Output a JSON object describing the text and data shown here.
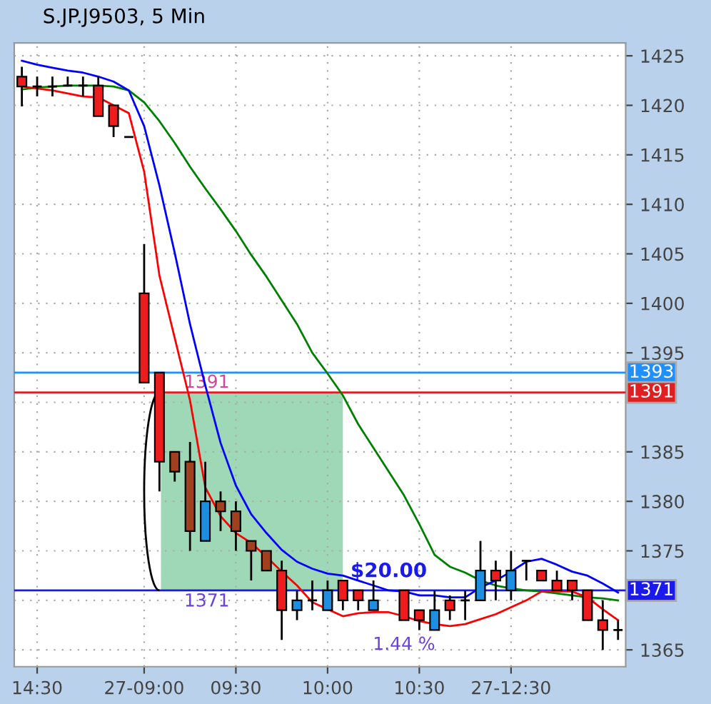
{
  "chart_data": {
    "type": "candlestick",
    "title": "S.JP.J9503, 5 Min",
    "categories": [
      null,
      "14:30",
      null,
      null,
      null,
      null,
      null,
      null,
      "27-09:00",
      null,
      null,
      null,
      null,
      null,
      "09:30",
      null,
      null,
      null,
      null,
      null,
      "10:00",
      null,
      null,
      null,
      null,
      null,
      "10:30",
      null,
      null,
      null,
      null,
      null,
      "27-12:30",
      null,
      null,
      null,
      null,
      null,
      null,
      null
    ],
    "ohlc": [
      [
        1422.9,
        1423.9,
        1419.9,
        1421.9
      ],
      [
        1421.9,
        1422.9,
        1420.9,
        1421.9
      ],
      [
        1421.9,
        1422.9,
        1420.9,
        1421.9
      ],
      [
        1422,
        1422.9,
        1421.9,
        1422
      ],
      [
        1422,
        1422.9,
        1420.9,
        1422
      ],
      [
        1422,
        1422.9,
        1418.9,
        1418.9
      ],
      [
        1420,
        1420,
        1416.8,
        1417.9
      ],
      [
        1416.8,
        1416.8,
        1416.8,
        1416.8
      ],
      [
        1401,
        1406,
        1392,
        1392
      ],
      [
        1393,
        1393,
        1381,
        1384
      ],
      [
        1385,
        1385,
        1382,
        1383
      ],
      [
        1384,
        1386,
        1375,
        1377
      ],
      [
        1376,
        1384,
        1376,
        1380
      ],
      [
        1380,
        1381,
        1377,
        1379
      ],
      [
        1379,
        1380,
        1375,
        1377
      ],
      [
        1376,
        1376,
        1372,
        1375
      ],
      [
        1375,
        1375,
        1373,
        1373
      ],
      [
        1373,
        1374,
        1366,
        1369
      ],
      [
        1369,
        1371,
        1368,
        1370
      ],
      [
        1370,
        1372,
        1369,
        1370
      ],
      [
        1369,
        1372,
        1369,
        1371
      ],
      [
        1372,
        1372,
        1369,
        1370
      ],
      [
        1371,
        1371,
        1369,
        1370
      ],
      [
        1369,
        1372,
        1369,
        1370
      ],
      null,
      [
        1371,
        1371,
        1368,
        1368
      ],
      [
        1369,
        1369,
        1367,
        1368
      ],
      [
        1367,
        1371,
        1367,
        1369
      ],
      [
        1370,
        1370.5,
        1368,
        1369
      ],
      [
        1370,
        1371,
        1368,
        1370
      ],
      [
        1370,
        1376,
        1370,
        1373
      ],
      [
        1373,
        1374,
        1370,
        1372
      ],
      [
        1371,
        1375,
        1370,
        1373
      ],
      [
        1374,
        1374,
        1372,
        1374
      ],
      [
        1373,
        1373,
        1372,
        1372
      ],
      [
        1372,
        1373,
        1371,
        1371
      ],
      [
        1372,
        1372,
        1370,
        1371
      ],
      [
        1371,
        1371,
        1368,
        1368
      ],
      [
        1368,
        1370,
        1365,
        1367
      ],
      [
        1367,
        1368,
        1366,
        1367
      ]
    ],
    "colors": [
      "#ee1c1c",
      "#000000",
      "#000000",
      "#000000",
      "#000000",
      "#ee1c1c",
      "#ee1c1c",
      "#000000",
      "#ee1c1c",
      "#ee1c1c",
      "#a0401e",
      "#a0401e",
      "#1e8fe0",
      "#a0401e",
      "#a0401e",
      "#a0401e",
      "#a0401e",
      "#ee1c1c",
      "#1e8fe0",
      "#000000",
      "#1e8fe0",
      "#ee1c1c",
      "#ee1c1c",
      "#1e8fe0",
      null,
      "#ee1c1c",
      "#ee1c1c",
      "#1e8fe0",
      "#ee1c1c",
      "#000000",
      "#1e8fe0",
      "#ee1c1c",
      "#1e8fe0",
      "#000000",
      "#ee1c1c",
      "#ee1c1c",
      "#ee1c1c",
      "#ee1c1c",
      "#ee1c1c",
      "#000000"
    ],
    "series": [
      {
        "type": "line",
        "color": "#008000",
        "values": [
          1421.6,
          1421.8,
          1421.9,
          1422,
          1422,
          1422,
          1421.9,
          1421.5,
          1420.3,
          1418.4,
          1416.2,
          1413.8,
          1411.6,
          1409.5,
          1407.3,
          1404.9,
          1402.7,
          1400.3,
          1397.9,
          1395.0,
          1392.9,
          1390.7,
          1387.8,
          1385.4,
          1383.0,
          1380.6,
          1377.7,
          1374.6,
          1373.4,
          1372.8,
          1372.0,
          1371.5,
          1371.2,
          1371.0,
          1370.9,
          1370.7,
          1370.5,
          1370.3,
          1370.2,
          1370.0
        ]
      },
      {
        "type": "line",
        "color": "#0000ff",
        "values": [
          1424.5,
          1424.1,
          1423.8,
          1423.5,
          1423.3,
          1422.9,
          1422.4,
          1421.5,
          1417.9,
          1411.9,
          1405.1,
          1397.9,
          1391.7,
          1385.9,
          1381.6,
          1378.7,
          1376.8,
          1375.1,
          1373.9,
          1373.2,
          1372.7,
          1372.5,
          1372.0,
          1371.5,
          1371.0,
          1370.9,
          1370.5,
          1370.5,
          1370.3,
          1370.3,
          1371.3,
          1372.0,
          1372.9,
          1373.9,
          1374.2,
          1373.6,
          1372.9,
          1372.5,
          1371.7,
          1370.8
        ]
      },
      {
        "type": "line",
        "color": "#ff0000",
        "values": [
          1421.9,
          1421.7,
          1421.5,
          1421.2,
          1420.9,
          1420.8,
          1420.0,
          1419.2,
          1413.3,
          1402.8,
          1396.5,
          1390.2,
          1381.4,
          1378.5,
          1376.8,
          1375.8,
          1374.4,
          1372.9,
          1371.5,
          1369.8,
          1369.1,
          1368.4,
          1368.7,
          1368.8,
          1368.8,
          1368.4,
          1367.9,
          1367.6,
          1367.4,
          1367.6,
          1368.1,
          1368.6,
          1369.3,
          1370.0,
          1370.9,
          1370.9,
          1370.9,
          1370.3,
          1369.1,
          1368.0
        ]
      }
    ],
    "ylim": [
      1363.3,
      1426.3
    ],
    "yticks": [
      1365,
      {
        "value": 1370,
        "label": null
      },
      1375,
      1380,
      1385,
      {
        "value": 1390,
        "label": null
      },
      1395,
      1400,
      1405,
      1410,
      1415,
      1420,
      1425
    ],
    "ref_lines": [
      {
        "axis": "y",
        "value": 1393,
        "label": "1393",
        "color": "#1e90ff"
      },
      {
        "axis": "y",
        "value": 1391,
        "label": "1391",
        "color": "#e02020"
      },
      {
        "axis": "y",
        "value": 1371,
        "label": "1371",
        "color": "#1a1aee"
      }
    ],
    "annotations": [
      {
        "text": "1391",
        "y": 1391
      },
      {
        "text": "1371",
        "y": 1371
      },
      "$20.00",
      "1.44 %"
    ],
    "grid": true
  }
}
